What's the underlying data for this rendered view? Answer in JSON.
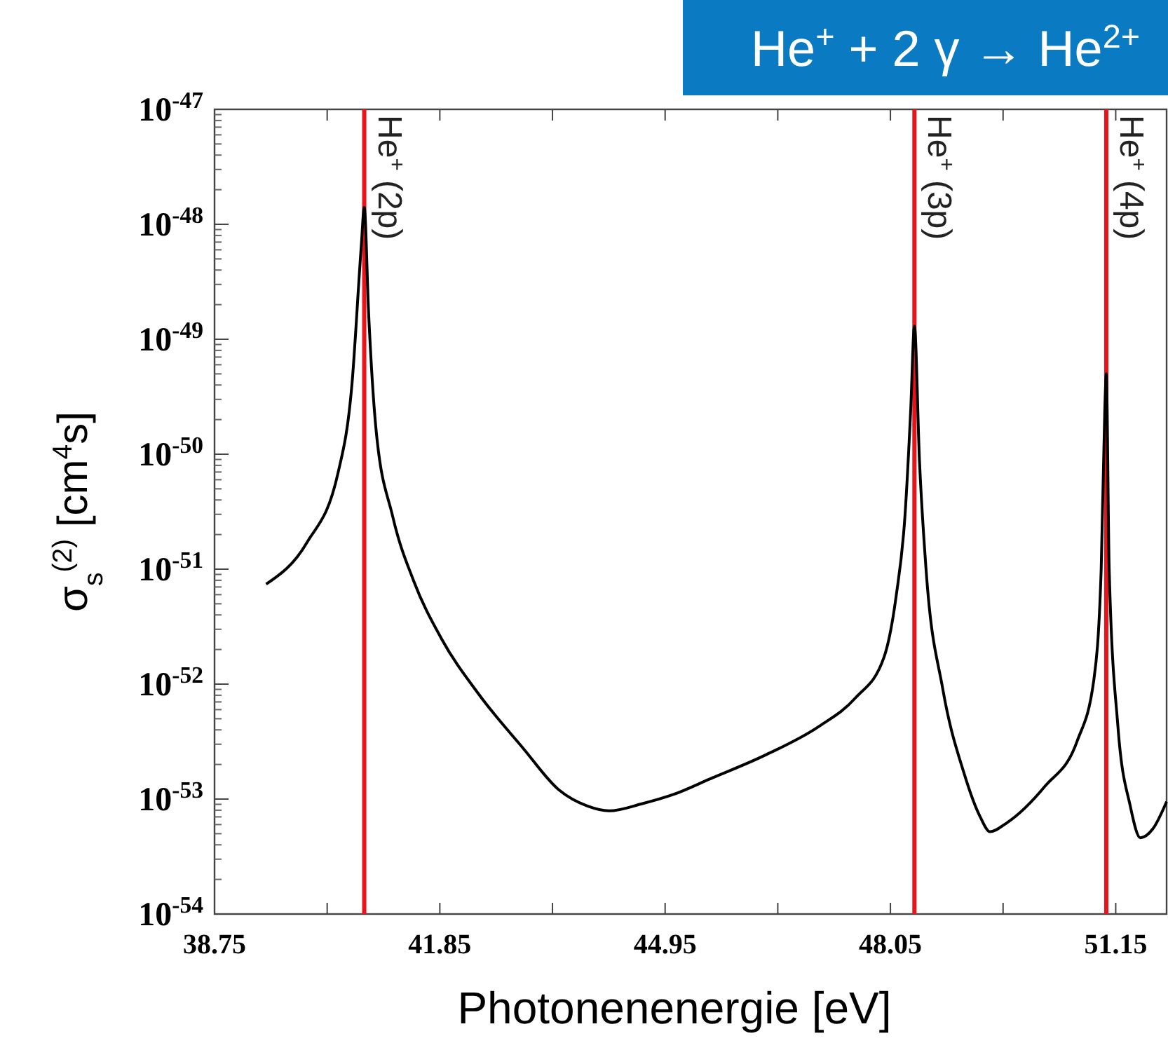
{
  "chart_data": {
    "type": "line",
    "title": "He$^{+}$ + 2 γ → He$^{2+}$",
    "xlabel": "Photonenenergie [eV]",
    "ylabel": "σ$_{s}$$^{(2)}$  [cm$^{4}$s]",
    "log": "y",
    "grid": false,
    "marker": "none",
    "line_style": "solid",
    "xlim": [
      38.75,
      51.85
    ],
    "xticks": [
      38.75,
      {
        "value": 40.3,
        "label": null
      },
      41.85,
      {
        "value": 43.4,
        "label": null
      },
      44.95,
      {
        "value": 46.5,
        "label": null
      },
      48.05,
      {
        "value": 49.6,
        "label": null
      },
      51.15
    ],
    "ylim": [
      1e-54,
      1e-47
    ],
    "yticks": [
      {
        "value": 1e-54,
        "label": "10$^{-54}$"
      },
      {
        "value": 1e-53,
        "label": "10$^{-53}$"
      },
      {
        "value": 1e-52,
        "label": "10$^{-52}$"
      },
      {
        "value": 1e-51,
        "label": "10$^{-51}$"
      },
      {
        "value": 1e-50,
        "label": "10$^{-50}$"
      },
      {
        "value": 1e-49,
        "label": "10$^{-49}$"
      },
      {
        "value": 1e-48,
        "label": "10$^{-48}$"
      },
      {
        "value": 1e-47,
        "label": "10$^{-47}$"
      }
    ],
    "series": [
      {
        "color": "#000000",
        "x": [
          39.46,
          40.02,
          40.45,
          40.64,
          40.77,
          40.81,
          40.87,
          40.97,
          41.2,
          41.49,
          41.87,
          42.39,
          42.99,
          43.49,
          43.88,
          44.18,
          44.63,
          45.07,
          45.57,
          46.32,
          47.07,
          47.57,
          47.96,
          48.13,
          48.25,
          48.33,
          48.38,
          48.45,
          48.54,
          48.77,
          49.06,
          49.29,
          49.42,
          49.65,
          50.18,
          50.62,
          50.85,
          50.95,
          51.0,
          51.02,
          51.06,
          51.18,
          51.35,
          51.49,
          51.66,
          51.85
        ],
        "values": [
          7.4e-52,
          1.7e-51,
          6.9e-51,
          4e-50,
          6.6e-49,
          1.4e-48,
          1.7e-49,
          1.7e-50,
          2.9e-51,
          7.9e-52,
          2.5e-52,
          8.1e-53,
          2.8e-53,
          1.2e-53,
          8.7e-54,
          7.9e-54,
          9.1e-54,
          1.1e-53,
          1.5e-53,
          2.4e-53,
          4.3e-53,
          7.6e-53,
          1.7e-52,
          5.9e-52,
          2.9e-51,
          2.5e-50,
          1.3e-49,
          8.7e-51,
          1e-51,
          9.1e-53,
          1.7e-53,
          6.9e-54,
          5.2e-54,
          6.2e-54,
          1.3e-53,
          3.2e-53,
          1.1e-52,
          1e-51,
          2.5e-50,
          5e-50,
          1e-51,
          4.3e-53,
          8.7e-54,
          4.6e-54,
          5.5e-54,
          9.5e-54
        ]
      }
    ],
    "ref_lines": [
      {
        "axis": "x",
        "value": 40.81,
        "label": "He$^{+}$ (2p)",
        "color": "#e8141c"
      },
      {
        "axis": "x",
        "value": 48.38,
        "label": "He$^{+}$ (3p)",
        "color": "#e8141c"
      },
      {
        "axis": "x",
        "value": 51.02,
        "label": "He$^{+}$ (4p)",
        "color": "#e8141c"
      }
    ]
  }
}
